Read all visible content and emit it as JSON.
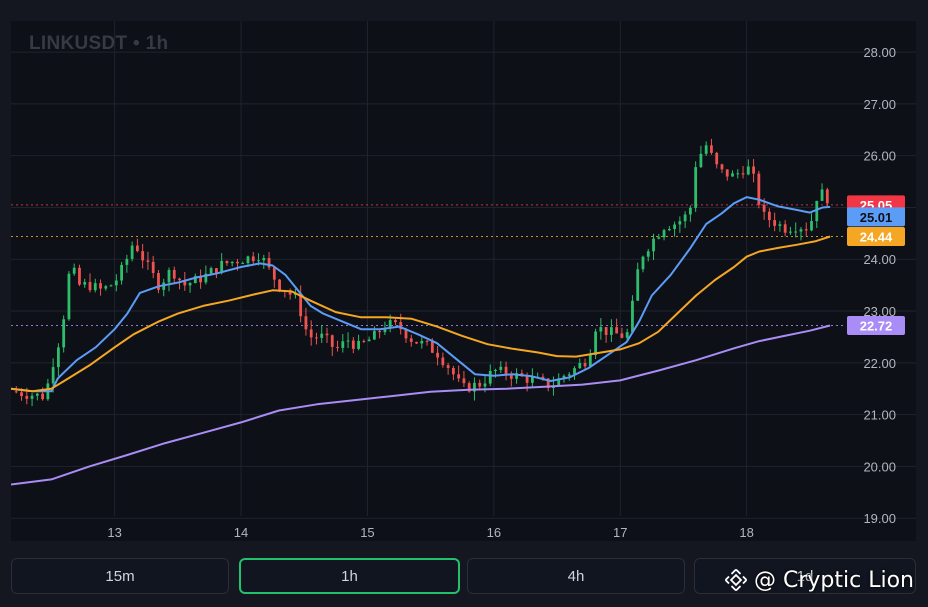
{
  "header": {
    "symbol": "LINKUSDT",
    "separator": "•",
    "interval": "1h"
  },
  "timeframes": [
    {
      "label": "15m",
      "active": false
    },
    {
      "label": "1h",
      "active": true
    },
    {
      "label": "4h",
      "active": false
    },
    {
      "label": "1d",
      "active": false
    }
  ],
  "watermark": {
    "text": "@ Cryptic Lion",
    "icon": "binance-diamond-icon"
  },
  "colors": {
    "up": "#26a69a",
    "up_bright": "#2ebd6b",
    "down": "#ef5350",
    "ma_fast": "#5b9cf6",
    "ma_mid": "#f5a623",
    "ma_slow": "#a98cf5",
    "price_tag": "#f23645",
    "grid": "#1f232d"
  },
  "chart_data": {
    "type": "candlestick",
    "title": "LINKUSDT • 1h",
    "x_ticks": [
      "13",
      "14",
      "15",
      "16",
      "17",
      "18"
    ],
    "y_ticks": [
      "19.00",
      "20.00",
      "21.00",
      "22.00",
      "23.00",
      "24.00",
      "25.00",
      "26.00",
      "27.00",
      "28.00"
    ],
    "x_range": [
      12.18,
      19.34
    ],
    "ylim": [
      18.56,
      28.6
    ],
    "grid": true,
    "price_labels": [
      {
        "name": "last",
        "value": 25.05,
        "text": "25.05",
        "color": "#f23645"
      },
      {
        "name": "ma_fast",
        "value": 25.01,
        "text": "25.01",
        "color": "#5b9cf6"
      },
      {
        "name": "ma_mid",
        "value": 24.44,
        "text": "24.44",
        "color": "#f5a623"
      },
      {
        "name": "ma_slow",
        "value": 22.72,
        "text": "22.72",
        "color": "#a98cf5"
      }
    ],
    "close_path": [
      [
        12.18,
        21.45
      ],
      [
        12.3,
        21.4
      ],
      [
        12.45,
        21.35
      ],
      [
        12.5,
        21.9
      ],
      [
        12.58,
        22.6
      ],
      [
        12.65,
        23.9
      ],
      [
        12.72,
        23.5
      ],
      [
        12.8,
        23.5
      ],
      [
        12.9,
        23.4
      ],
      [
        13.0,
        23.55
      ],
      [
        13.08,
        23.9
      ],
      [
        13.15,
        24.35
      ],
      [
        13.25,
        23.9
      ],
      [
        13.35,
        23.5
      ],
      [
        13.45,
        23.8
      ],
      [
        13.55,
        23.5
      ],
      [
        13.7,
        23.65
      ],
      [
        13.85,
        23.9
      ],
      [
        14.0,
        24.0
      ],
      [
        14.1,
        24.05
      ],
      [
        14.15,
        24.1
      ],
      [
        14.22,
        23.8
      ],
      [
        14.3,
        23.5
      ],
      [
        14.38,
        23.35
      ],
      [
        14.45,
        23.2
      ],
      [
        14.5,
        22.7
      ],
      [
        14.55,
        22.5
      ],
      [
        14.65,
        22.5
      ],
      [
        14.75,
        22.25
      ],
      [
        14.85,
        22.45
      ],
      [
        14.92,
        22.3
      ],
      [
        15.05,
        22.5
      ],
      [
        15.15,
        22.75
      ],
      [
        15.25,
        22.7
      ],
      [
        15.35,
        22.45
      ],
      [
        15.45,
        22.35
      ],
      [
        15.55,
        22.2
      ],
      [
        15.65,
        21.9
      ],
      [
        15.75,
        21.5
      ],
      [
        15.9,
        21.6
      ],
      [
        16.0,
        21.85
      ],
      [
        16.1,
        21.8
      ],
      [
        16.25,
        21.7
      ],
      [
        16.35,
        21.65
      ],
      [
        16.45,
        21.55
      ],
      [
        16.55,
        21.75
      ],
      [
        16.65,
        21.9
      ],
      [
        16.75,
        22.1
      ],
      [
        16.8,
        22.7
      ],
      [
        16.9,
        22.6
      ],
      [
        17.05,
        22.5
      ],
      [
        17.12,
        23.4
      ],
      [
        17.15,
        24.0
      ],
      [
        17.25,
        24.35
      ],
      [
        17.35,
        24.65
      ],
      [
        17.45,
        24.7
      ],
      [
        17.55,
        24.9
      ],
      [
        17.6,
        25.9
      ],
      [
        17.68,
        26.2
      ],
      [
        17.78,
        25.7
      ],
      [
        17.9,
        25.6
      ],
      [
        18.0,
        25.8
      ],
      [
        18.05,
        25.6
      ],
      [
        18.08,
        25.3
      ],
      [
        18.12,
        24.85
      ],
      [
        18.2,
        24.75
      ],
      [
        18.3,
        24.6
      ],
      [
        18.4,
        24.65
      ],
      [
        18.5,
        24.6
      ],
      [
        18.55,
        25.2
      ],
      [
        18.62,
        25.3
      ],
      [
        18.66,
        25.05
      ]
    ],
    "series": [
      {
        "name": "MA fast",
        "color": "#5b9cf6",
        "points": [
          [
            12.18,
            21.5
          ],
          [
            12.35,
            21.45
          ],
          [
            12.5,
            21.45
          ],
          [
            12.55,
            21.7
          ],
          [
            12.7,
            22.05
          ],
          [
            12.85,
            22.3
          ],
          [
            13.0,
            22.65
          ],
          [
            13.1,
            22.95
          ],
          [
            13.2,
            23.35
          ],
          [
            13.35,
            23.48
          ],
          [
            13.5,
            23.55
          ],
          [
            13.65,
            23.65
          ],
          [
            13.8,
            23.72
          ],
          [
            14.0,
            23.85
          ],
          [
            14.15,
            23.92
          ],
          [
            14.25,
            23.88
          ],
          [
            14.35,
            23.7
          ],
          [
            14.45,
            23.4
          ],
          [
            14.55,
            23.1
          ],
          [
            14.65,
            22.95
          ],
          [
            14.8,
            22.8
          ],
          [
            14.95,
            22.65
          ],
          [
            15.1,
            22.65
          ],
          [
            15.25,
            22.7
          ],
          [
            15.4,
            22.55
          ],
          [
            15.55,
            22.38
          ],
          [
            15.7,
            22.08
          ],
          [
            15.85,
            21.78
          ],
          [
            16.0,
            21.75
          ],
          [
            16.15,
            21.78
          ],
          [
            16.3,
            21.74
          ],
          [
            16.45,
            21.65
          ],
          [
            16.6,
            21.72
          ],
          [
            16.75,
            21.9
          ],
          [
            16.9,
            22.15
          ],
          [
            17.05,
            22.4
          ],
          [
            17.15,
            22.8
          ],
          [
            17.25,
            23.3
          ],
          [
            17.4,
            23.7
          ],
          [
            17.55,
            24.2
          ],
          [
            17.68,
            24.68
          ],
          [
            17.8,
            24.88
          ],
          [
            17.9,
            25.08
          ],
          [
            18.0,
            25.2
          ],
          [
            18.1,
            25.15
          ],
          [
            18.25,
            25.02
          ],
          [
            18.4,
            24.95
          ],
          [
            18.5,
            24.9
          ],
          [
            18.6,
            25.0
          ],
          [
            18.66,
            25.01
          ]
        ]
      },
      {
        "name": "MA mid",
        "color": "#f5a623",
        "points": [
          [
            12.18,
            21.5
          ],
          [
            12.35,
            21.45
          ],
          [
            12.5,
            21.5
          ],
          [
            12.6,
            21.65
          ],
          [
            12.8,
            21.95
          ],
          [
            13.0,
            22.3
          ],
          [
            13.15,
            22.55
          ],
          [
            13.35,
            22.8
          ],
          [
            13.5,
            22.95
          ],
          [
            13.7,
            23.1
          ],
          [
            13.9,
            23.2
          ],
          [
            14.1,
            23.32
          ],
          [
            14.25,
            23.4
          ],
          [
            14.4,
            23.38
          ],
          [
            14.55,
            23.2
          ],
          [
            14.75,
            22.98
          ],
          [
            14.95,
            22.88
          ],
          [
            15.15,
            22.88
          ],
          [
            15.35,
            22.85
          ],
          [
            15.55,
            22.7
          ],
          [
            15.75,
            22.52
          ],
          [
            15.95,
            22.36
          ],
          [
            16.15,
            22.27
          ],
          [
            16.35,
            22.2
          ],
          [
            16.5,
            22.13
          ],
          [
            16.65,
            22.12
          ],
          [
            16.8,
            22.18
          ],
          [
            17.0,
            22.26
          ],
          [
            17.15,
            22.38
          ],
          [
            17.3,
            22.6
          ],
          [
            17.45,
            22.95
          ],
          [
            17.6,
            23.3
          ],
          [
            17.75,
            23.6
          ],
          [
            17.9,
            23.85
          ],
          [
            18.0,
            24.05
          ],
          [
            18.1,
            24.15
          ],
          [
            18.25,
            24.22
          ],
          [
            18.4,
            24.28
          ],
          [
            18.55,
            24.35
          ],
          [
            18.66,
            24.44
          ]
        ]
      },
      {
        "name": "MA slow",
        "color": "#a98cf5",
        "points": [
          [
            12.18,
            19.65
          ],
          [
            12.5,
            19.75
          ],
          [
            12.8,
            20.0
          ],
          [
            13.1,
            20.22
          ],
          [
            13.4,
            20.45
          ],
          [
            13.7,
            20.65
          ],
          [
            14.0,
            20.85
          ],
          [
            14.3,
            21.08
          ],
          [
            14.6,
            21.2
          ],
          [
            14.9,
            21.28
          ],
          [
            15.2,
            21.36
          ],
          [
            15.5,
            21.44
          ],
          [
            15.8,
            21.48
          ],
          [
            16.1,
            21.5
          ],
          [
            16.4,
            21.54
          ],
          [
            16.7,
            21.58
          ],
          [
            17.0,
            21.66
          ],
          [
            17.3,
            21.85
          ],
          [
            17.6,
            22.05
          ],
          [
            17.9,
            22.28
          ],
          [
            18.1,
            22.42
          ],
          [
            18.3,
            22.52
          ],
          [
            18.5,
            22.62
          ],
          [
            18.66,
            22.72
          ]
        ]
      }
    ]
  }
}
